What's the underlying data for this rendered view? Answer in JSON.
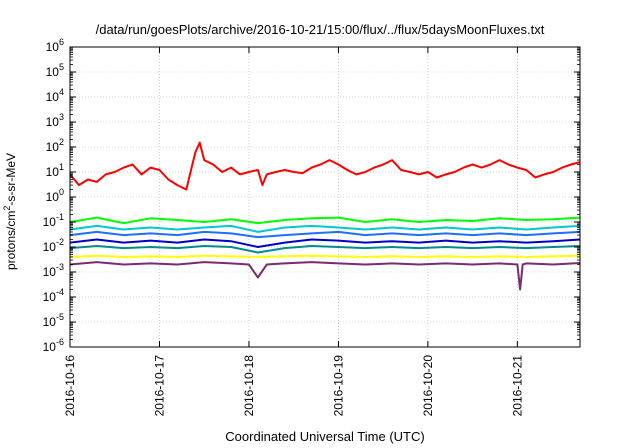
{
  "chart_data": {
    "type": "line",
    "title": "/data/run/goesPlots/archive/2016-10-21/15:00/flux/../flux/5daysMoonFluxes.txt",
    "xlabel": "Coordinated Universal Time (UTC)",
    "ylabel": "protons/cm2-s-sr-MeV",
    "ylabel_parts": {
      "base": "protons/cm",
      "sup": "2",
      "rest": "-s-sr-MeV"
    },
    "yscale": "log",
    "ylim_exp": [
      -6,
      6
    ],
    "ytick_labels": [
      "10-6",
      "10-5",
      "10-4",
      "10-3",
      "10-2",
      "10-1",
      "100",
      "101",
      "102",
      "103",
      "104",
      "105",
      "106"
    ],
    "xticks": [
      "2016-10-16",
      "2016-10-17",
      "2016-10-18",
      "2016-10-19",
      "2016-10-20",
      "2016-10-21"
    ],
    "xlim_days": [
      0,
      5.7
    ],
    "grid": true,
    "series": [
      {
        "color": "#ff0000",
        "x": [
          0,
          0.1,
          0.2,
          0.3,
          0.4,
          0.5,
          0.6,
          0.7,
          0.8,
          0.9,
          1.0,
          1.1,
          1.2,
          1.3,
          1.4,
          1.45,
          1.5,
          1.6,
          1.7,
          1.8,
          1.9,
          2.0,
          2.1,
          2.15,
          2.2,
          2.3,
          2.4,
          2.5,
          2.6,
          2.7,
          2.8,
          2.9,
          3.0,
          3.1,
          3.2,
          3.3,
          3.4,
          3.5,
          3.6,
          3.7,
          3.8,
          3.9,
          4.0,
          4.1,
          4.2,
          4.3,
          4.4,
          4.5,
          4.6,
          4.7,
          4.8,
          4.9,
          5.0,
          5.1,
          5.2,
          5.3,
          5.4,
          5.5,
          5.6,
          5.7
        ],
        "y": [
          8,
          3,
          5,
          4,
          8,
          10,
          15,
          20,
          8,
          15,
          12,
          5,
          3,
          2,
          60,
          150,
          30,
          20,
          10,
          15,
          8,
          10,
          12,
          3,
          8,
          10,
          12,
          10,
          9,
          15,
          20,
          30,
          20,
          12,
          8,
          10,
          15,
          20,
          30,
          12,
          10,
          8,
          10,
          6,
          8,
          10,
          15,
          20,
          15,
          20,
          30,
          20,
          15,
          12,
          6,
          8,
          10,
          15,
          20,
          25
        ]
      },
      {
        "color": "#00ff00",
        "x": [
          0,
          0.3,
          0.6,
          0.9,
          1.2,
          1.5,
          1.8,
          2.1,
          2.4,
          2.7,
          3.0,
          3.3,
          3.6,
          3.9,
          4.2,
          4.5,
          4.8,
          5.1,
          5.4,
          5.7
        ],
        "y": [
          0.1,
          0.15,
          0.09,
          0.14,
          0.12,
          0.1,
          0.13,
          0.09,
          0.12,
          0.14,
          0.15,
          0.1,
          0.13,
          0.1,
          0.12,
          0.11,
          0.14,
          0.12,
          0.13,
          0.15
        ]
      },
      {
        "color": "#00c8d0",
        "x": [
          0,
          0.3,
          0.6,
          0.9,
          1.2,
          1.5,
          1.8,
          2.1,
          2.4,
          2.7,
          3.0,
          3.3,
          3.6,
          3.9,
          4.2,
          4.5,
          4.8,
          5.1,
          5.4,
          5.7
        ],
        "y": [
          0.05,
          0.07,
          0.05,
          0.06,
          0.05,
          0.06,
          0.07,
          0.04,
          0.06,
          0.07,
          0.06,
          0.05,
          0.06,
          0.05,
          0.06,
          0.05,
          0.06,
          0.05,
          0.06,
          0.07
        ]
      },
      {
        "color": "#1f6fff",
        "x": [
          0,
          0.3,
          0.6,
          0.9,
          1.2,
          1.5,
          1.8,
          2.1,
          2.4,
          2.7,
          3.0,
          3.3,
          3.6,
          3.9,
          4.2,
          4.5,
          4.8,
          5.1,
          5.4,
          5.7
        ],
        "y": [
          0.03,
          0.04,
          0.03,
          0.035,
          0.03,
          0.04,
          0.035,
          0.025,
          0.03,
          0.035,
          0.04,
          0.03,
          0.035,
          0.03,
          0.035,
          0.03,
          0.035,
          0.03,
          0.035,
          0.04
        ]
      },
      {
        "color": "#0000c8",
        "x": [
          0,
          0.3,
          0.6,
          0.9,
          1.2,
          1.5,
          1.8,
          2.1,
          2.4,
          2.7,
          3.0,
          3.3,
          3.6,
          3.9,
          4.2,
          4.5,
          4.8,
          5.1,
          5.4,
          5.7
        ],
        "y": [
          0.015,
          0.02,
          0.015,
          0.018,
          0.015,
          0.02,
          0.017,
          0.01,
          0.015,
          0.02,
          0.018,
          0.015,
          0.017,
          0.015,
          0.018,
          0.015,
          0.017,
          0.015,
          0.017,
          0.02
        ]
      },
      {
        "color": "#008c8c",
        "x": [
          0,
          0.3,
          0.6,
          0.9,
          1.2,
          1.5,
          1.8,
          2.1,
          2.4,
          2.7,
          3.0,
          3.3,
          3.6,
          3.9,
          4.2,
          4.5,
          4.8,
          5.1,
          5.4,
          5.7
        ],
        "y": [
          0.009,
          0.011,
          0.009,
          0.01,
          0.009,
          0.011,
          0.01,
          0.006,
          0.009,
          0.011,
          0.01,
          0.009,
          0.01,
          0.009,
          0.01,
          0.009,
          0.01,
          0.009,
          0.01,
          0.011
        ]
      },
      {
        "color": "#ffff00",
        "x": [
          0,
          0.3,
          0.6,
          0.9,
          1.2,
          1.5,
          1.8,
          2.1,
          2.4,
          2.7,
          3.0,
          3.3,
          3.6,
          3.9,
          4.2,
          4.5,
          4.8,
          5.1,
          5.4,
          5.7
        ],
        "y": [
          0.004,
          0.0045,
          0.004,
          0.0042,
          0.004,
          0.0045,
          0.0042,
          0.004,
          0.0043,
          0.0045,
          0.0042,
          0.004,
          0.0043,
          0.004,
          0.0042,
          0.004,
          0.0042,
          0.004,
          0.0043,
          0.0045
        ]
      },
      {
        "color": "#7a2c6e",
        "x": [
          0,
          0.3,
          0.6,
          0.9,
          1.2,
          1.5,
          1.8,
          2.0,
          2.1,
          2.2,
          2.4,
          2.7,
          3.0,
          3.3,
          3.6,
          3.9,
          4.2,
          4.5,
          4.8,
          5.0,
          5.03,
          5.06,
          5.1,
          5.4,
          5.7
        ],
        "y": [
          0.002,
          0.0025,
          0.002,
          0.0022,
          0.002,
          0.0025,
          0.0022,
          0.002,
          0.0006,
          0.002,
          0.0022,
          0.0025,
          0.0022,
          0.002,
          0.0022,
          0.002,
          0.0022,
          0.002,
          0.0022,
          0.002,
          0.0002,
          0.002,
          0.0022,
          0.002,
          0.0023
        ]
      }
    ]
  }
}
